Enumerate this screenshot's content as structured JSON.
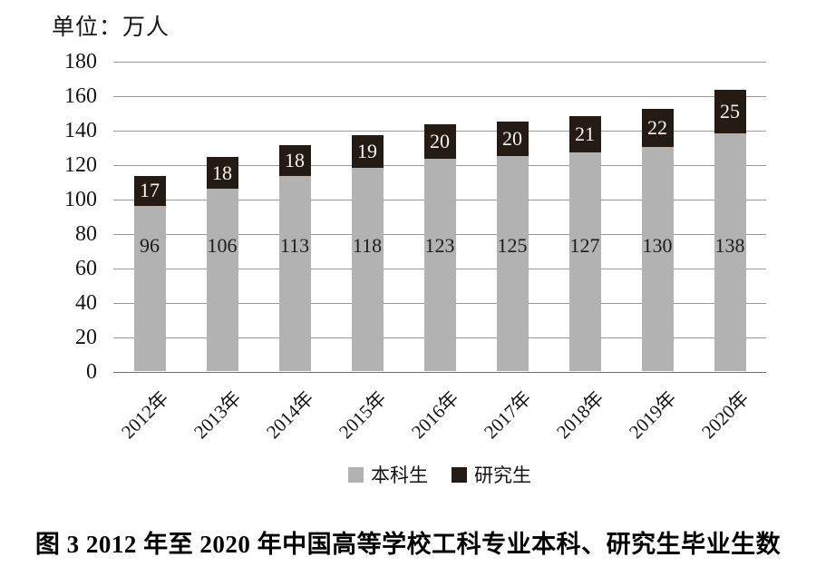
{
  "header": {
    "unit_label": "单位：万人"
  },
  "chart_data": {
    "type": "bar",
    "stacked": true,
    "title": "",
    "xlabel": "",
    "ylabel": "万人",
    "categories": [
      "2012年",
      "2013年",
      "2014年",
      "2015年",
      "2016年",
      "2017年",
      "2018年",
      "2019年",
      "2020年"
    ],
    "series": [
      {
        "name": "本科生",
        "color": "#b2b2b2",
        "label_color": "#1c1c1c",
        "values": [
          96,
          106,
          113,
          118,
          123,
          125,
          127,
          130,
          138
        ]
      },
      {
        "name": "研究生",
        "color": "#241b15",
        "label_color": "#f8f4f1",
        "values": [
          17,
          18,
          18,
          19,
          20,
          20,
          21,
          22,
          25
        ]
      }
    ],
    "ylim": [
      0,
      180
    ],
    "ytick_step": 20,
    "grid": true,
    "gridline_color": "#9b9b9b",
    "axis_color": "#6f6f6f",
    "legend_position": "bottom"
  },
  "legend": {
    "items": [
      {
        "label": "本科生",
        "color": "#b2b2b2"
      },
      {
        "label": "研究生",
        "color": "#241b15"
      }
    ]
  },
  "caption": "图 3  2012 年至 2020 年中国高等学校工科专业本科、研究生毕业生数"
}
